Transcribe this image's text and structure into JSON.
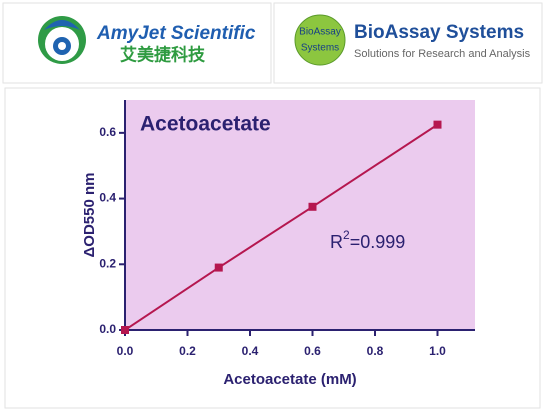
{
  "header": {
    "left": {
      "name": "AmyJet Scientific",
      "subname": "艾美捷科技"
    },
    "right": {
      "badge": [
        "BioAssay",
        "Systems"
      ],
      "name": "BioAssay Systems",
      "tagline": "Solutions for Research and Analysis"
    }
  },
  "chart_data": {
    "type": "line",
    "title": "Acetoacetate",
    "x_label": "Acetoacetate (mM)",
    "y_label": "ΔOD550 nm",
    "annotation": {
      "base": "R",
      "sup": "2",
      "rest": "=0.999"
    },
    "x": [
      0,
      0.3,
      0.6,
      1.0
    ],
    "series": [
      {
        "name": "Acetoacetate",
        "color": "#b5174f",
        "values": [
          0,
          0.19,
          0.375,
          0.625
        ]
      }
    ],
    "xlim": [
      0,
      1.12
    ],
    "ylim": [
      0,
      0.7
    ],
    "xticks": [
      {
        "value": 0,
        "label": "0.0"
      },
      0.2,
      0.4,
      0.6,
      0.8,
      {
        "value": 1,
        "label": "1.0"
      }
    ],
    "yticks": [
      {
        "value": 0,
        "label": "0.0"
      },
      0.2,
      0.4,
      0.6
    ],
    "plot_color": "#ebcbee"
  }
}
